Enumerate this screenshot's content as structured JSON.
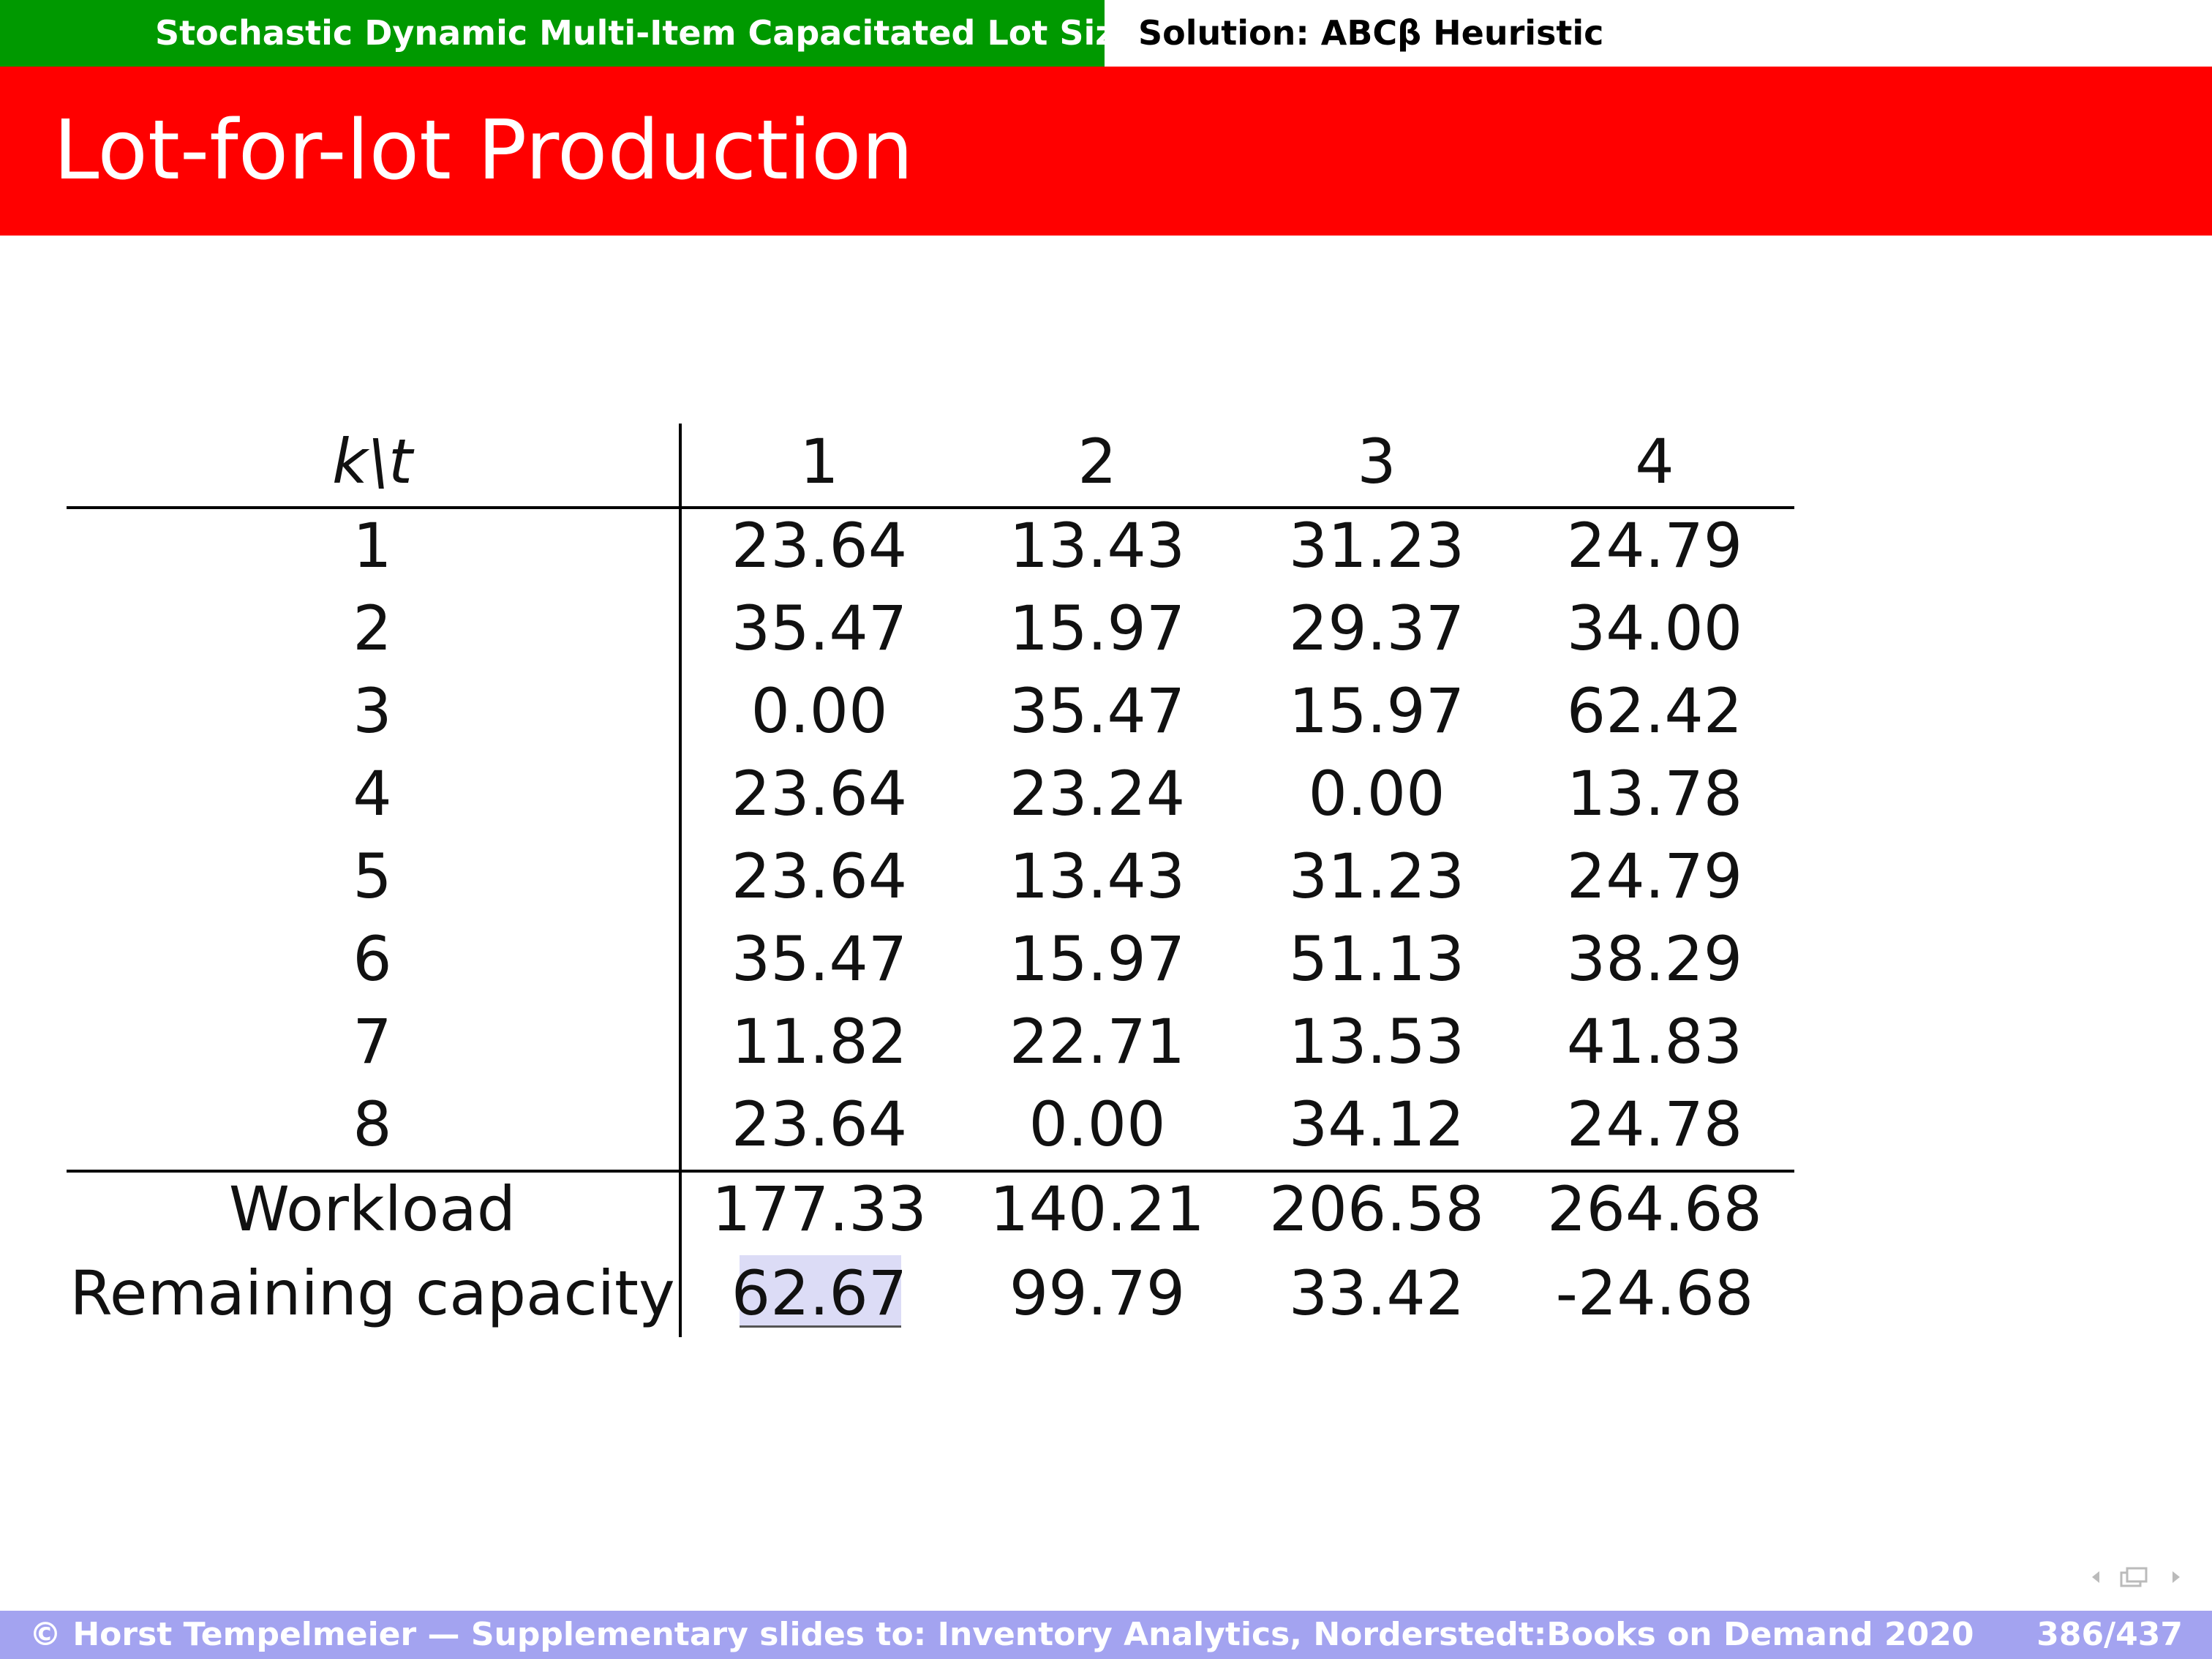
{
  "header": {
    "section": "Stochastic Dynamic Multi-Item Capacitated Lot Sizing",
    "subsection": "Solution: ABCβ Heuristic"
  },
  "title": "Lot-for-lot Production",
  "table": {
    "corner": "k\\t",
    "columns": [
      "1",
      "2",
      "3",
      "4"
    ],
    "rows": [
      [
        "1",
        "23.64",
        "13.43",
        "31.23",
        "24.79"
      ],
      [
        "2",
        "35.47",
        "15.97",
        "29.37",
        "34.00"
      ],
      [
        "3",
        "0.00",
        "35.47",
        "15.97",
        "62.42"
      ],
      [
        "4",
        "23.64",
        "23.24",
        "0.00",
        "13.78"
      ],
      [
        "5",
        "23.64",
        "13.43",
        "31.23",
        "24.79"
      ],
      [
        "6",
        "35.47",
        "15.97",
        "51.13",
        "38.29"
      ],
      [
        "7",
        "11.82",
        "22.71",
        "13.53",
        "41.83"
      ],
      [
        "8",
        "23.64",
        "0.00",
        "34.12",
        "24.78"
      ]
    ],
    "summary": [
      [
        "Workload",
        "177.33",
        "140.21",
        "206.58",
        "264.68"
      ],
      [
        "Remaining capacity",
        "62.67",
        "99.79",
        "33.42",
        "-24.68"
      ]
    ]
  },
  "footer": {
    "left": "© Horst Tempelmeier — Supplementary slides to: Inventory Analytics, Norderstedt:Books on Demand 2020",
    "page": "386/437"
  }
}
